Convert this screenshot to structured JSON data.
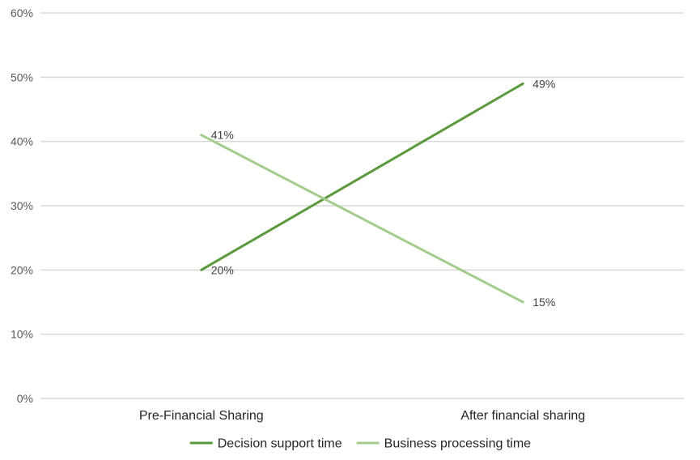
{
  "chart_data": {
    "type": "line",
    "title": "",
    "xlabel": "",
    "ylabel": "",
    "categories": [
      "Pre-Financial Sharing",
      "After financial sharing"
    ],
    "ylim": [
      0,
      60
    ],
    "yticks": [
      "0%",
      "10%",
      "20%",
      "30%",
      "40%",
      "50%",
      "60%"
    ],
    "grid": true,
    "legend_position": "bottom",
    "series": [
      {
        "name": "Decision support time",
        "values": [
          20,
          49
        ],
        "labels": [
          "20%",
          "49%"
        ],
        "color": "#5b9a3c"
      },
      {
        "name": "Business processing time",
        "values": [
          41,
          15
        ],
        "labels": [
          "41%",
          "15%"
        ],
        "color": "#a3cc8d"
      }
    ]
  }
}
